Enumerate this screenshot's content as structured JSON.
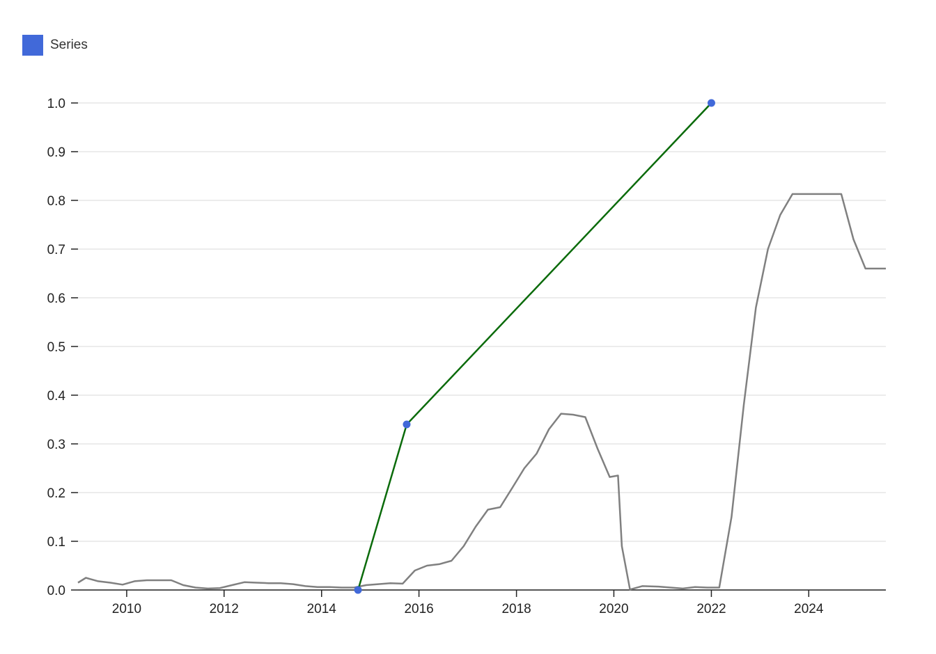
{
  "legend": {
    "label": "Series",
    "color": "#4169d9"
  },
  "colors": {
    "series_line": "#0b6b0b",
    "series_point": "#4169d9",
    "background_line": "#808080",
    "grid": "#e6e6e6"
  },
  "chart_data": {
    "type": "line",
    "xlim": [
      "2009-01-01",
      "2025-08-01"
    ],
    "ylim": [
      0,
      1
    ],
    "grid": "horizontal",
    "legend_position": "top-left",
    "x_ticks": [
      "2010",
      "2012",
      "2014",
      "2016",
      "2018",
      "2020",
      "2022",
      "2024"
    ],
    "y_ticks": [
      "0.0",
      "0.1",
      "0.2",
      "0.3",
      "0.4",
      "0.5",
      "0.6",
      "0.7",
      "0.8",
      "0.9",
      "1.0"
    ],
    "series": [
      {
        "name": "Series",
        "x": [
          "2014-10-01",
          "2015-10-01",
          "2022-01-01"
        ],
        "y": [
          0.0,
          0.34,
          1.0
        ]
      },
      {
        "x": [
          "2009-01",
          "2009-03",
          "2009-06",
          "2009-09",
          "2009-12",
          "2010-03",
          "2010-06",
          "2010-09",
          "2010-12",
          "2011-03",
          "2011-06",
          "2011-09",
          "2011-12",
          "2012-03",
          "2012-06",
          "2012-09",
          "2012-12",
          "2013-03",
          "2013-06",
          "2013-09",
          "2013-12",
          "2014-03",
          "2014-06",
          "2014-09",
          "2014-12",
          "2015-03",
          "2015-06",
          "2015-09",
          "2015-12",
          "2016-03",
          "2016-06",
          "2016-09",
          "2016-12",
          "2017-03",
          "2017-06",
          "2017-09",
          "2017-12",
          "2018-03",
          "2018-06",
          "2018-09",
          "2018-12",
          "2019-03",
          "2019-06",
          "2019-09",
          "2019-12",
          "2020-02",
          "2020-03",
          "2020-05",
          "2020-08",
          "2020-12",
          "2021-03",
          "2021-06",
          "2021-09",
          "2021-12",
          "2022-03",
          "2022-06",
          "2022-09",
          "2022-12",
          "2023-03",
          "2023-06",
          "2023-09",
          "2023-12",
          "2024-03",
          "2024-06",
          "2024-09",
          "2024-12",
          "2025-03",
          "2025-08"
        ],
        "y": [
          0.015,
          0.025,
          0.018,
          0.015,
          0.011,
          0.018,
          0.02,
          0.02,
          0.02,
          0.01,
          0.005,
          0.003,
          0.004,
          0.01,
          0.016,
          0.015,
          0.014,
          0.014,
          0.012,
          0.008,
          0.006,
          0.006,
          0.005,
          0.005,
          0.01,
          0.012,
          0.014,
          0.013,
          0.04,
          0.05,
          0.053,
          0.06,
          0.09,
          0.13,
          0.165,
          0.17,
          0.21,
          0.25,
          0.28,
          0.33,
          0.362,
          0.36,
          0.355,
          0.29,
          0.232,
          0.235,
          0.09,
          0.001,
          0.008,
          0.007,
          0.005,
          0.003,
          0.006,
          0.005,
          0.005,
          0.15,
          0.38,
          0.58,
          0.7,
          0.77,
          0.813,
          0.813,
          0.813,
          0.813,
          0.813,
          0.72,
          0.66,
          0.66
        ]
      }
    ]
  }
}
